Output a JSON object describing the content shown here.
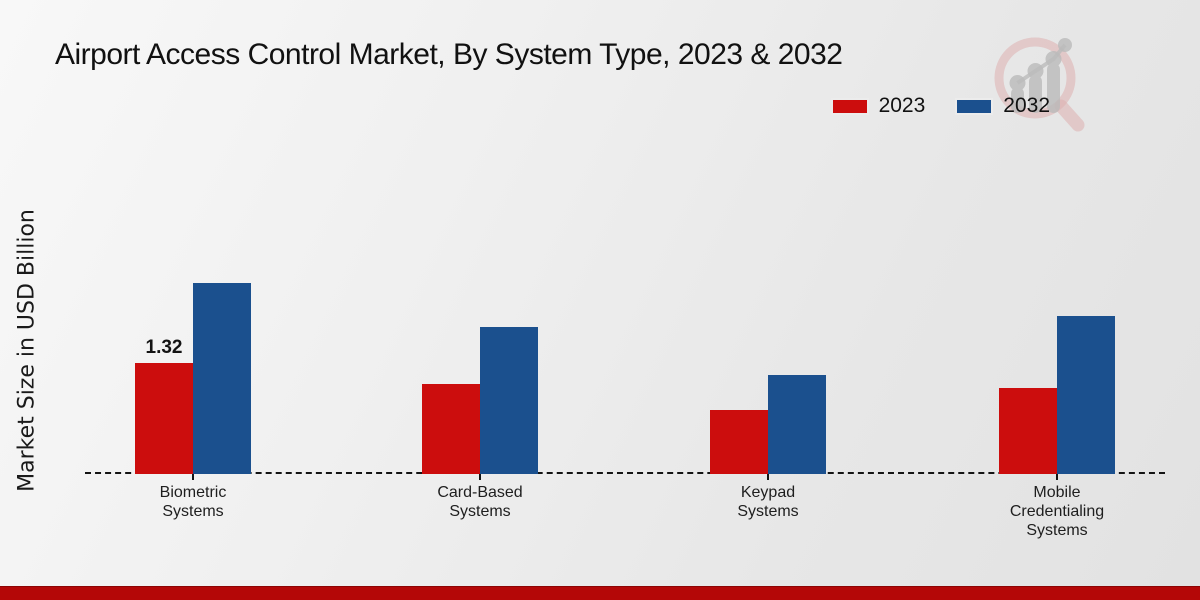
{
  "page": {
    "title": "Airport Access Control Market, By System Type, 2023 & 2032",
    "y_axis_label": "Market Size in USD Billion",
    "watermark_icon": "magnifier-bar-chart-logo",
    "bottom_strip_color": "#b40707"
  },
  "chart_data": {
    "type": "bar",
    "title": "Airport Access Control Market, By System Type, 2023 & 2032",
    "xlabel": "",
    "ylabel": "Market Size in USD Billion",
    "categories": [
      "Biometric Systems",
      "Card-Based Systems",
      "Keypad Systems",
      "Mobile Credentialing Systems"
    ],
    "series": [
      {
        "name": "2023",
        "color": "#cc0d0d",
        "values": [
          1.32,
          1.07,
          0.76,
          1.02
        ]
      },
      {
        "name": "2032",
        "color": "#1b508e",
        "values": [
          2.27,
          1.75,
          1.18,
          1.88
        ]
      }
    ],
    "value_labels": [
      {
        "series_index": 0,
        "category_index": 0,
        "text": "1.32"
      }
    ],
    "ylim": [
      0,
      2.4
    ],
    "grid": false,
    "axis_style": "dashed-baseline-only",
    "legend_position": "top-right"
  }
}
